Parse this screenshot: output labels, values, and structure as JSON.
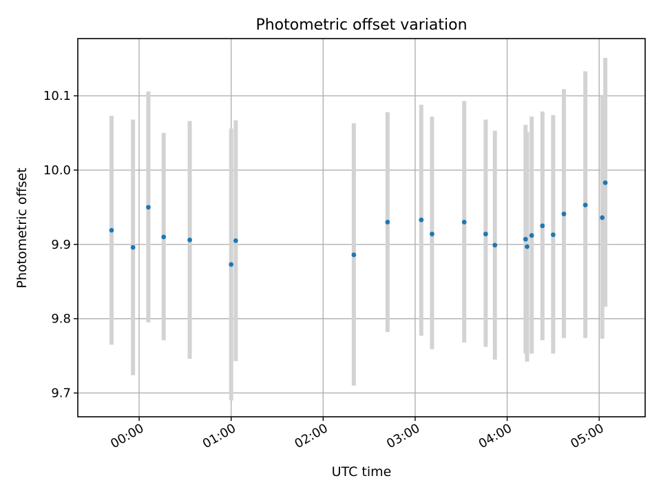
{
  "chart_data": {
    "type": "scatter",
    "title": "Photometric offset variation",
    "xlabel": "UTC time",
    "ylabel": "Photometric offset",
    "x_axis": {
      "kind": "time",
      "unit": "UTC",
      "range": [
        "23:20",
        "05:30"
      ],
      "tick_labels": [
        "00:00",
        "01:00",
        "02:00",
        "03:00",
        "04:00",
        "05:00"
      ]
    },
    "y_axis": {
      "range": [
        9.668,
        10.177
      ],
      "ticks": [
        9.7,
        9.8,
        9.9,
        10.0,
        10.1
      ],
      "tick_labels": [
        "9.7",
        "9.8",
        "9.9",
        "10.0",
        "10.1"
      ]
    },
    "grid": true,
    "series": [
      {
        "marker_color": "#1f77b4",
        "errorbar_color": "#d3d3d3",
        "points": [
          {
            "t": "23:42",
            "y": 9.919,
            "ylo": 9.765,
            "yhi": 10.073
          },
          {
            "t": "23:56",
            "y": 9.896,
            "ylo": 9.724,
            "yhi": 10.068
          },
          {
            "t": "00:06",
            "y": 9.95,
            "ylo": 9.795,
            "yhi": 10.106
          },
          {
            "t": "00:16",
            "y": 9.91,
            "ylo": 9.771,
            "yhi": 10.05
          },
          {
            "t": "00:33",
            "y": 9.906,
            "ylo": 9.746,
            "yhi": 10.066
          },
          {
            "t": "01:00",
            "y": 9.873,
            "ylo": 9.69,
            "yhi": 10.056
          },
          {
            "t": "01:03",
            "y": 9.905,
            "ylo": 9.743,
            "yhi": 10.067
          },
          {
            "t": "02:20",
            "y": 9.886,
            "ylo": 9.71,
            "yhi": 10.063
          },
          {
            "t": "02:42",
            "y": 9.93,
            "ylo": 9.782,
            "yhi": 10.078
          },
          {
            "t": "03:04",
            "y": 9.933,
            "ylo": 9.777,
            "yhi": 10.088
          },
          {
            "t": "03:11",
            "y": 9.914,
            "ylo": 9.759,
            "yhi": 10.072
          },
          {
            "t": "03:32",
            "y": 9.93,
            "ylo": 9.768,
            "yhi": 10.093
          },
          {
            "t": "03:46",
            "y": 9.914,
            "ylo": 9.762,
            "yhi": 10.068
          },
          {
            "t": "03:52",
            "y": 9.899,
            "ylo": 9.745,
            "yhi": 10.053
          },
          {
            "t": "04:12",
            "y": 9.907,
            "ylo": 9.753,
            "yhi": 10.061
          },
          {
            "t": "04:13",
            "y": 9.897,
            "ylo": 9.742,
            "yhi": 10.051
          },
          {
            "t": "04:16",
            "y": 9.912,
            "ylo": 9.753,
            "yhi": 10.072
          },
          {
            "t": "04:23",
            "y": 9.925,
            "ylo": 9.771,
            "yhi": 10.079
          },
          {
            "t": "04:30",
            "y": 9.913,
            "ylo": 9.753,
            "yhi": 10.074
          },
          {
            "t": "04:37",
            "y": 9.941,
            "ylo": 9.774,
            "yhi": 10.109
          },
          {
            "t": "04:51",
            "y": 9.953,
            "ylo": 9.774,
            "yhi": 10.133
          },
          {
            "t": "05:02",
            "y": 9.936,
            "ylo": 9.773,
            "yhi": 10.1
          },
          {
            "t": "05:04",
            "y": 9.983,
            "ylo": 9.816,
            "yhi": 10.151
          }
        ]
      }
    ]
  }
}
